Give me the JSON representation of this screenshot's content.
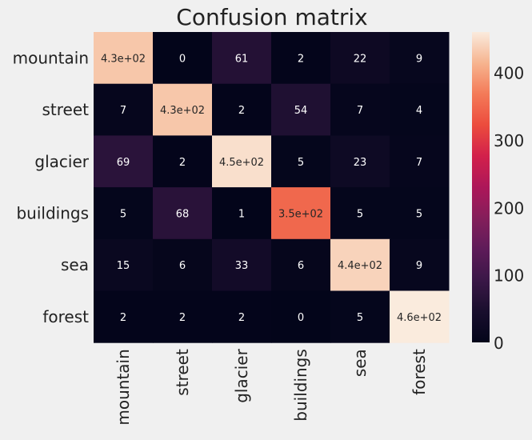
{
  "chart_data": {
    "type": "heatmap",
    "title": "Confusion matrix",
    "xlabel": "",
    "ylabel": "",
    "rows": [
      "mountain",
      "street",
      "glacier",
      "buildings",
      "sea",
      "forest"
    ],
    "columns": [
      "mountain",
      "street",
      "glacier",
      "buildings",
      "sea",
      "forest"
    ],
    "values": [
      [
        430,
        0,
        61,
        2,
        22,
        9
      ],
      [
        7,
        430,
        2,
        54,
        7,
        4
      ],
      [
        69,
        2,
        450,
        5,
        23,
        7
      ],
      [
        5,
        68,
        1,
        350,
        5,
        5
      ],
      [
        15,
        6,
        33,
        6,
        440,
        9
      ],
      [
        2,
        2,
        2,
        0,
        5,
        460
      ]
    ],
    "cell_labels": [
      [
        "4.3e+02",
        "0",
        "61",
        "2",
        "22",
        "9"
      ],
      [
        "7",
        "4.3e+02",
        "2",
        "54",
        "7",
        "4"
      ],
      [
        "69",
        "2",
        "4.5e+02",
        "5",
        "23",
        "7"
      ],
      [
        "5",
        "68",
        "1",
        "3.5e+02",
        "5",
        "5"
      ],
      [
        "15",
        "6",
        "33",
        "6",
        "4.4e+02",
        "9"
      ],
      [
        "2",
        "2",
        "2",
        "0",
        "5",
        "4.6e+02"
      ]
    ],
    "colorbar": {
      "colormap": "rocket",
      "vmin": 0,
      "vmax": 460,
      "ticks": [
        0,
        100,
        200,
        300,
        400
      ],
      "tick_labels": [
        "0",
        "100",
        "200",
        "300",
        "400"
      ]
    },
    "colors": {
      "background": "#f0f0f0",
      "text": "#222222",
      "light_text": "#ffffff",
      "dark_text": "#262626"
    }
  }
}
